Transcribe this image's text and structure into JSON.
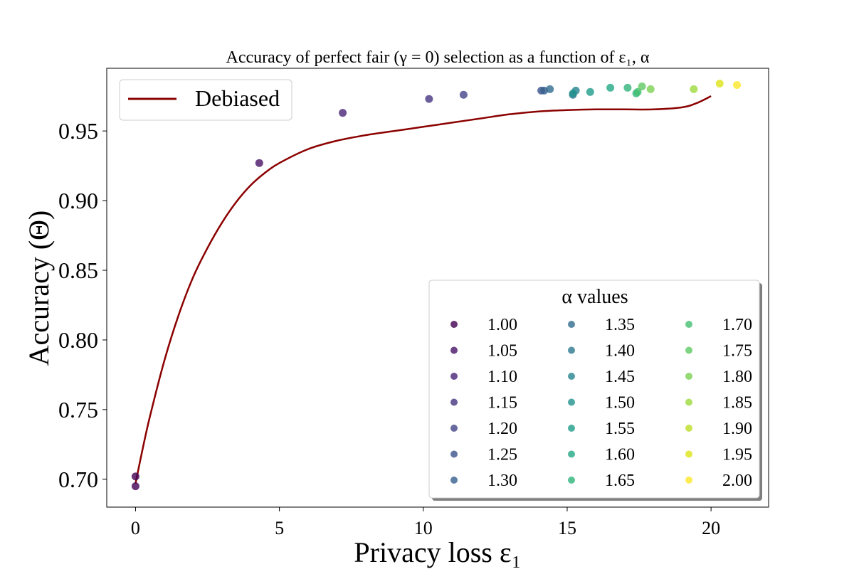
{
  "chart_data": {
    "type": "scatter",
    "title": "Accuracy of perfect fair (γ = 0) selection as a function of ε₁, α",
    "xlabel": "Privacy loss ε₁",
    "ylabel": "Accuracy (Θ)",
    "xlim": [
      -1,
      22
    ],
    "ylim": [
      0.68,
      0.995
    ],
    "x_ticks": [
      0,
      5,
      10,
      15,
      20
    ],
    "x_tick_labels": [
      "0",
      "5",
      "10",
      "15",
      "20"
    ],
    "y_ticks": [
      0.7,
      0.75,
      0.8,
      0.85,
      0.9,
      0.95
    ],
    "y_tick_labels": [
      "0.70",
      "0.75",
      "0.80",
      "0.85",
      "0.90",
      "0.95"
    ],
    "grid": false,
    "line_series": {
      "name": "Debiased",
      "color": "#8b0000",
      "x": [
        0,
        0.25,
        0.5,
        1,
        1.5,
        2,
        2.5,
        3,
        3.5,
        4,
        4.5,
        5,
        6,
        7,
        8,
        9,
        10,
        11,
        12,
        13,
        14,
        15,
        16,
        17,
        18,
        19,
        19.5,
        20
      ],
      "y": [
        0.697,
        0.722,
        0.745,
        0.785,
        0.818,
        0.845,
        0.866,
        0.884,
        0.899,
        0.911,
        0.92,
        0.927,
        0.937,
        0.943,
        0.947,
        0.95,
        0.953,
        0.956,
        0.959,
        0.962,
        0.964,
        0.965,
        0.9655,
        0.9655,
        0.9655,
        0.967,
        0.97,
        0.975
      ]
    },
    "scatter_series": {
      "legend_title": "α values",
      "alpha_values": [
        "1.00",
        "1.05",
        "1.10",
        "1.15",
        "1.20",
        "1.25",
        "1.30",
        "1.35",
        "1.40",
        "1.45",
        "1.50",
        "1.55",
        "1.60",
        "1.65",
        "1.70",
        "1.75",
        "1.80",
        "1.85",
        "1.90",
        "1.95",
        "2.00"
      ],
      "colors": [
        "#440154",
        "#471365",
        "#482475",
        "#463480",
        "#414487",
        "#3b528b",
        "#355f8d",
        "#2f6c8e",
        "#2a788e",
        "#25848e",
        "#21918c",
        "#1e9c89",
        "#22a884",
        "#2fb47c",
        "#44bf70",
        "#5ec962",
        "#7ad151",
        "#9bd93c",
        "#bddf26",
        "#dfe318",
        "#fde725"
      ],
      "points": [
        {
          "x": 0,
          "y": 0.702,
          "c": 0
        },
        {
          "x": 0,
          "y": 0.695,
          "c": 0
        },
        {
          "x": 4.3,
          "y": 0.927,
          "c": 1
        },
        {
          "x": 7.2,
          "y": 0.963,
          "c": 2
        },
        {
          "x": 10.2,
          "y": 0.973,
          "c": 3
        },
        {
          "x": 11.4,
          "y": 0.976,
          "c": 4
        },
        {
          "x": 14.1,
          "y": 0.979,
          "c": 5
        },
        {
          "x": 14.2,
          "y": 0.979,
          "c": 6
        },
        {
          "x": 14.4,
          "y": 0.98,
          "c": 7
        },
        {
          "x": 15.2,
          "y": 0.976,
          "c": 8
        },
        {
          "x": 15.3,
          "y": 0.979,
          "c": 9
        },
        {
          "x": 15.2,
          "y": 0.977,
          "c": 10
        },
        {
          "x": 15.8,
          "y": 0.978,
          "c": 11
        },
        {
          "x": 16.5,
          "y": 0.981,
          "c": 12
        },
        {
          "x": 17.1,
          "y": 0.981,
          "c": 13
        },
        {
          "x": 17.4,
          "y": 0.977,
          "c": 13
        },
        {
          "x": 17.45,
          "y": 0.978,
          "c": 14
        },
        {
          "x": 17.6,
          "y": 0.982,
          "c": 15
        },
        {
          "x": 17.9,
          "y": 0.98,
          "c": 16
        },
        {
          "x": 19.4,
          "y": 0.98,
          "c": 17
        },
        {
          "x": 20.3,
          "y": 0.984,
          "c": 19
        },
        {
          "x": 20.9,
          "y": 0.983,
          "c": 20
        }
      ]
    },
    "legend_location": "top-left",
    "colorbar_legend_location": "lower-right"
  }
}
